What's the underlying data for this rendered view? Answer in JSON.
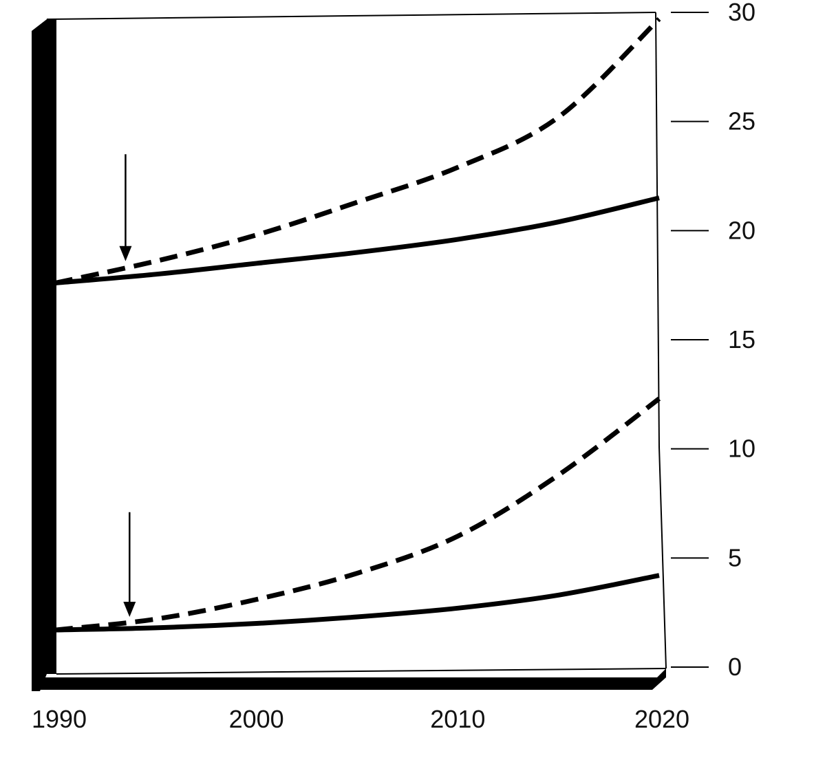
{
  "chart_data": {
    "type": "line",
    "title": "",
    "xlabel": "",
    "ylabel": "",
    "x_ticks": [
      "1990",
      "2000",
      "2010",
      "2020"
    ],
    "y_ticks": [
      "0",
      "5",
      "10",
      "15",
      "20",
      "25",
      "30"
    ],
    "xlim": [
      1990,
      2020
    ],
    "ylim": [
      0,
      30
    ],
    "y_axis_side": "right",
    "grid": false,
    "legend": "none",
    "series": [
      {
        "style": "solid",
        "x": [
          1990,
          1995,
          2000,
          2005,
          2010,
          2015,
          2020
        ],
        "y": [
          17.6,
          18.0,
          18.5,
          19.0,
          19.6,
          20.4,
          21.5
        ]
      },
      {
        "style": "dashed",
        "x": [
          1990,
          1995,
          2000,
          2005,
          2010,
          2015,
          2020
        ],
        "y": [
          17.6,
          18.6,
          19.8,
          21.3,
          22.9,
          25.2,
          29.7
        ]
      },
      {
        "style": "solid",
        "x": [
          1990,
          1995,
          2000,
          2005,
          2010,
          2015,
          2020
        ],
        "y": [
          1.7,
          1.8,
          2.0,
          2.3,
          2.7,
          3.3,
          4.2
        ]
      },
      {
        "style": "dashed",
        "x": [
          1990,
          1995,
          2000,
          2005,
          2010,
          2015,
          2020
        ],
        "y": [
          1.7,
          2.2,
          3.1,
          4.3,
          6.0,
          8.8,
          12.3
        ]
      }
    ],
    "annotations": [
      {
        "type": "arrow",
        "x": 1993.5,
        "y_from": 23.5,
        "y_to": 18.6
      },
      {
        "type": "arrow",
        "x": 1993.7,
        "y_from": 7.1,
        "y_to": 2.3
      }
    ],
    "colors": {
      "ink": "#000000",
      "background": "#ffffff"
    }
  }
}
